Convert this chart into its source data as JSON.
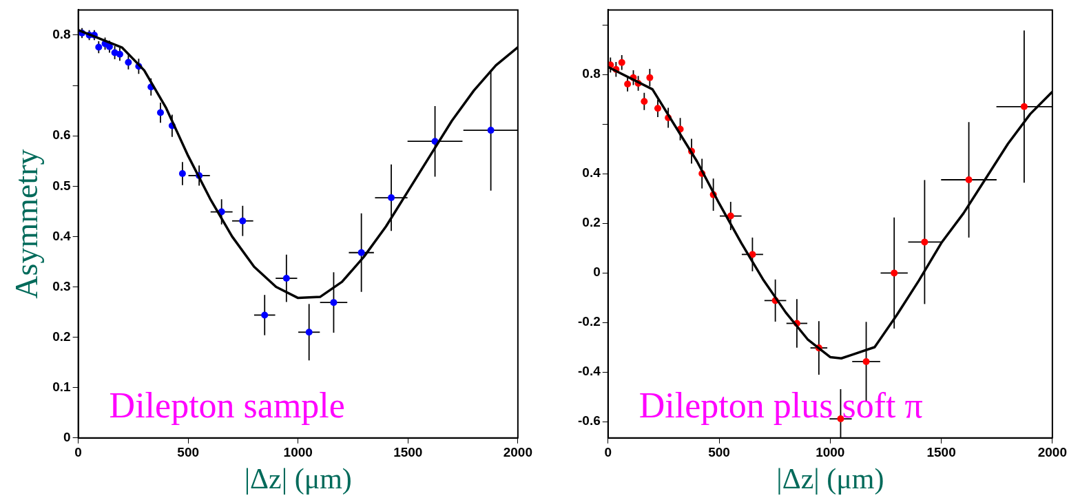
{
  "chart_data": [
    {
      "type": "scatter",
      "ylabel": "Asymmetry",
      "xlabel": "|Δz| (μm)",
      "xlim": [
        0,
        2000
      ],
      "xticks": [
        0,
        500,
        1000,
        1500,
        2000
      ],
      "ylim": [
        0,
        0.85
      ],
      "yticks": [
        0,
        0.1,
        0.2,
        0.3,
        0.4,
        0.5,
        0.6,
        {
          "value": 0.7,
          "label": null
        },
        0.8
      ],
      "grid": false,
      "legend": false,
      "marker": "circle",
      "annotations": [
        "Dilepton sample"
      ],
      "series": [
        {
          "color": "#0000ff",
          "x": [
            17,
            50,
            73,
            93,
            122,
            142,
            166,
            189,
            228,
            275,
            331,
            374,
            427,
            474,
            550,
            652,
            748,
            848,
            947,
            1050,
            1162,
            1288,
            1424,
            1623,
            1877
          ],
          "values": [
            0.804,
            0.8,
            0.8,
            0.776,
            0.783,
            0.777,
            0.765,
            0.762,
            0.746,
            0.738,
            0.697,
            0.646,
            0.62,
            0.525,
            0.521,
            0.449,
            0.431,
            0.244,
            0.317,
            0.21,
            0.269,
            0.368,
            0.477,
            0.589,
            0.611
          ],
          "errors": [
            0.01,
            0.01,
            0.01,
            0.012,
            0.012,
            0.012,
            0.013,
            0.013,
            0.014,
            0.015,
            0.017,
            0.02,
            0.022,
            0.023,
            0.02,
            0.025,
            0.03,
            0.04,
            0.047,
            0.056,
            0.06,
            0.078,
            0.066,
            0.07,
            0.12
          ],
          "xerrors": [
            null,
            null,
            null,
            null,
            null,
            null,
            null,
            null,
            null,
            null,
            null,
            null,
            null,
            null,
            49,
            50,
            48,
            48,
            49,
            49,
            62,
            57,
            74,
            125,
            125
          ]
        },
        {
          "type": "line",
          "color": "#000000",
          "marker": "none",
          "x": [
            0,
            200,
            300,
            400,
            500,
            600,
            700,
            800,
            900,
            1000,
            1100,
            1200,
            1300,
            1400,
            1500,
            1600,
            1700,
            1800,
            1900,
            2000
          ],
          "values": [
            0.81,
            0.775,
            0.73,
            0.655,
            0.56,
            0.475,
            0.4,
            0.34,
            0.3,
            0.278,
            0.28,
            0.31,
            0.36,
            0.42,
            0.49,
            0.56,
            0.63,
            0.69,
            0.74,
            0.776
          ]
        }
      ]
    },
    {
      "type": "scatter",
      "xlabel": "|Δz| (μm)",
      "xlim": [
        0,
        2000
      ],
      "xticks": [
        0,
        500,
        1000,
        1500,
        2000
      ],
      "ylim": [
        -0.666,
        1.06
      ],
      "yticks": [
        -0.6,
        -0.4,
        -0.2,
        0,
        0.2,
        0.4,
        {
          "value": 0.6,
          "label": null
        },
        0.8,
        {
          "value": 1,
          "label": null
        }
      ],
      "grid": false,
      "legend": false,
      "marker": "circle",
      "annotations": [
        "Dilepton plus soft π"
      ],
      "series": [
        {
          "color": "#ff0000",
          "x": [
            11,
            36,
            62,
            88,
            114,
            136,
            163,
            188,
            224,
            271,
            325,
            376,
            423,
            474,
            552,
            650,
            753,
            850,
            949,
            1047,
            1162,
            1288,
            1425,
            1624,
            1873
          ],
          "values": [
            0.838,
            0.82,
            0.848,
            0.761,
            0.787,
            0.764,
            0.691,
            0.787,
            0.663,
            0.625,
            0.579,
            0.49,
            0.4,
            0.315,
            0.229,
            0.074,
            -0.112,
            -0.204,
            -0.303,
            -0.589,
            -0.358,
            -0.001,
            0.124,
            0.375,
            0.67
          ],
          "errors": [
            0.03,
            0.03,
            0.03,
            0.03,
            0.03,
            0.03,
            0.035,
            0.035,
            0.035,
            0.04,
            0.045,
            0.05,
            0.06,
            0.065,
            0.057,
            0.068,
            0.085,
            0.098,
            0.108,
            0.12,
            0.16,
            0.224,
            0.25,
            0.233,
            0.307
          ],
          "xerrors": [
            null,
            null,
            null,
            null,
            null,
            null,
            null,
            null,
            null,
            null,
            null,
            null,
            null,
            null,
            49,
            48,
            49,
            47,
            38,
            50,
            63,
            61,
            74,
            125,
            125
          ]
        },
        {
          "type": "line",
          "color": "#000000",
          "marker": "none",
          "x": [
            0,
            200,
            400,
            500,
            600,
            700,
            800,
            900,
            1000,
            1050,
            1100,
            1200,
            1300,
            1400,
            1500,
            1600,
            1700,
            1800,
            1900,
            2000
          ],
          "values": [
            0.83,
            0.74,
            0.45,
            0.28,
            0.12,
            -0.03,
            -0.16,
            -0.27,
            -0.34,
            -0.345,
            -0.33,
            -0.3,
            -0.17,
            -0.03,
            0.12,
            0.24,
            0.38,
            0.52,
            0.64,
            0.73
          ]
        }
      ]
    }
  ]
}
